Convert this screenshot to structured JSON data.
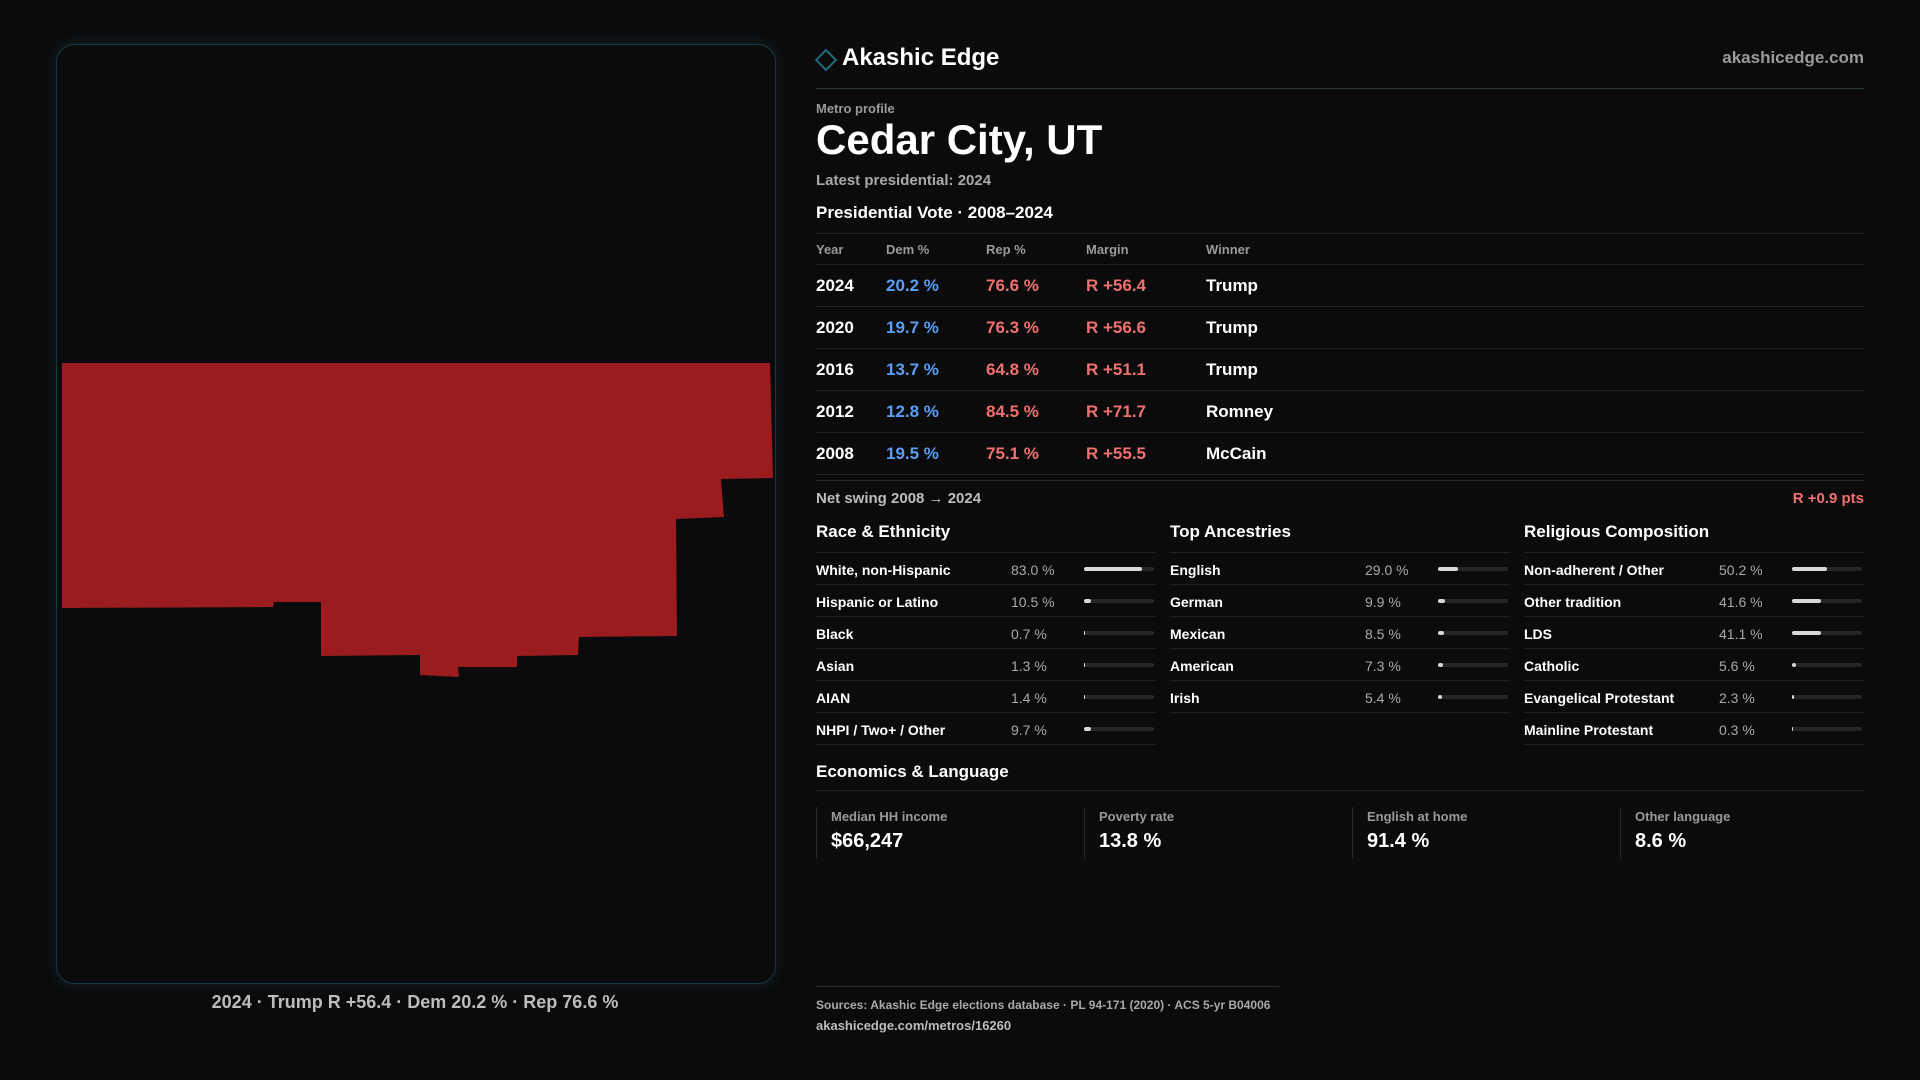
{
  "map_caption": "2024 · Trump R +56.4 · Dem 20.2 % · Rep 76.6 %",
  "map_fill_color": "#9b1c1f",
  "brand": {
    "name": "Akashic Edge",
    "site": "akashicedge.com",
    "icon": "diamond-icon"
  },
  "profile": {
    "kicker": "Metro profile",
    "title": "Cedar City, UT",
    "subtitle": "Latest presidential: 2024"
  },
  "vote": {
    "title": "Presidential Vote · 2008–2024",
    "headers": {
      "year": "Year",
      "dem": "Dem %",
      "rep": "Rep %",
      "margin": "Margin",
      "winner": "Winner"
    },
    "rows": [
      {
        "year": "2024",
        "dem": "20.2 %",
        "rep": "76.6 %",
        "margin": "R +56.4",
        "winner": "Trump"
      },
      {
        "year": "2020",
        "dem": "19.7 %",
        "rep": "76.3 %",
        "margin": "R +56.6",
        "winner": "Trump"
      },
      {
        "year": "2016",
        "dem": "13.7 %",
        "rep": "64.8 %",
        "margin": "R +51.1",
        "winner": "Trump"
      },
      {
        "year": "2012",
        "dem": "12.8 %",
        "rep": "84.5 %",
        "margin": "R +71.7",
        "winner": "Romney"
      },
      {
        "year": "2008",
        "dem": "19.5 %",
        "rep": "75.1 %",
        "margin": "R +55.5",
        "winner": "McCain"
      }
    ],
    "swing_label": "Net swing 2008 → 2024",
    "swing_value": "R +0.9 pts"
  },
  "race": {
    "title": "Race & Ethnicity",
    "rows": [
      {
        "label": "White, non-Hispanic",
        "value": "83.0 %",
        "pct": 83.0
      },
      {
        "label": "Hispanic or Latino",
        "value": "10.5 %",
        "pct": 10.5
      },
      {
        "label": "Black",
        "value": "0.7 %",
        "pct": 0.7
      },
      {
        "label": "Asian",
        "value": "1.3 %",
        "pct": 1.3
      },
      {
        "label": "AIAN",
        "value": "1.4 %",
        "pct": 1.4
      },
      {
        "label": "NHPI / Two+ / Other",
        "value": "9.7 %",
        "pct": 9.7
      }
    ]
  },
  "ancestry": {
    "title": "Top Ancestries",
    "rows": [
      {
        "label": "English",
        "value": "29.0 %",
        "pct": 29.0
      },
      {
        "label": "German",
        "value": "9.9 %",
        "pct": 9.9
      },
      {
        "label": "Mexican",
        "value": "8.5 %",
        "pct": 8.5
      },
      {
        "label": "American",
        "value": "7.3 %",
        "pct": 7.3
      },
      {
        "label": "Irish",
        "value": "5.4 %",
        "pct": 5.4
      }
    ]
  },
  "religion": {
    "title": "Religious Composition",
    "rows": [
      {
        "label": "Non-adherent / Other",
        "value": "50.2 %",
        "pct": 50.2
      },
      {
        "label": "Other tradition",
        "value": "41.6 %",
        "pct": 41.6
      },
      {
        "label": "LDS",
        "value": "41.1 %",
        "pct": 41.1
      },
      {
        "label": "Catholic",
        "value": "5.6 %",
        "pct": 5.6
      },
      {
        "label": "Evangelical Protestant",
        "value": "2.3 %",
        "pct": 2.3
      },
      {
        "label": "Mainline Protestant",
        "value": "0.3 %",
        "pct": 0.3
      }
    ]
  },
  "economics": {
    "title": "Economics & Language",
    "cards": [
      {
        "label": "Median HH income",
        "value": "$66,247"
      },
      {
        "label": "Poverty rate",
        "value": "13.8 %"
      },
      {
        "label": "English at home",
        "value": "91.4 %"
      },
      {
        "label": "Other language",
        "value": "8.6 %"
      }
    ]
  },
  "footer": {
    "sources": "Sources: Akashic Edge elections database · PL 94-171 (2020) · ACS 5-yr B04006",
    "url": "akashicedge.com/metros/16260"
  }
}
